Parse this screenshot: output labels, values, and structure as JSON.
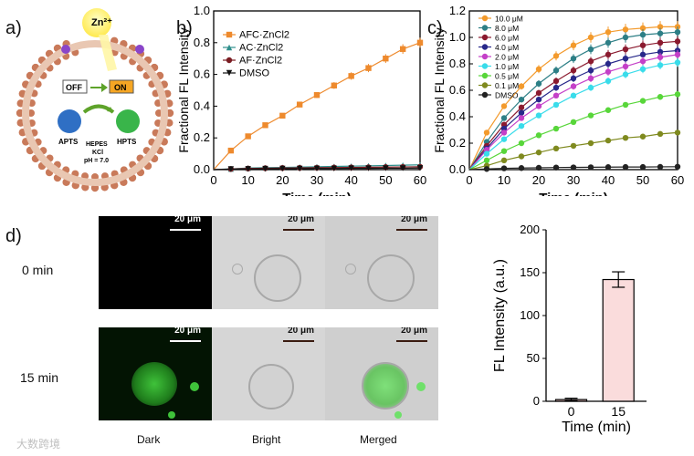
{
  "panels": {
    "a": "a)",
    "b": "b)",
    "c": "c)",
    "d": "d)"
  },
  "schematic": {
    "ion": "Zn²⁺",
    "off": "OFF",
    "on": "ON",
    "left_dye": "APTS",
    "right_dye": "HPTS",
    "buffer_lines": [
      "HEPES",
      "KCl",
      "pH = 7.0"
    ]
  },
  "colors": {
    "orange": "#ee8a2d",
    "teal": "#2f8f8c",
    "darkred": "#7a1c22",
    "black": "#111111",
    "pink": "#fadcdc",
    "green": "#3fc23a"
  },
  "chart_data": [
    {
      "id": "b",
      "type": "line",
      "title": "",
      "xlabel": "Time (min)",
      "ylabel": "Fractional FL Intensity",
      "xlim": [
        0,
        60
      ],
      "ylim": [
        0,
        1.0
      ],
      "xticks": [
        0,
        10,
        20,
        30,
        40,
        50,
        60
      ],
      "yticks": [
        0.0,
        0.2,
        0.4,
        0.6,
        0.8,
        1.0
      ],
      "legend_position": "top-left",
      "series": [
        {
          "name": "AFC·ZnCl2",
          "color": "#ee8a2d",
          "marker": "square",
          "x": [
            0,
            5,
            10,
            15,
            20,
            25,
            30,
            35,
            40,
            45,
            50,
            55,
            60
          ],
          "y": [
            0.0,
            0.12,
            0.21,
            0.28,
            0.34,
            0.41,
            0.47,
            0.53,
            0.59,
            0.64,
            0.7,
            0.76,
            0.8
          ]
        },
        {
          "name": "AC·ZnCl2",
          "color": "#2f8f8c",
          "marker": "triangle",
          "x": [
            0,
            5,
            10,
            15,
            20,
            25,
            30,
            35,
            40,
            45,
            50,
            55,
            60
          ],
          "y": [
            0.0,
            0.005,
            0.01,
            0.012,
            0.014,
            0.016,
            0.018,
            0.02,
            0.022,
            0.024,
            0.026,
            0.028,
            0.03
          ]
        },
        {
          "name": "AF·ZnCl2",
          "color": "#7a1c22",
          "marker": "circle",
          "x": [
            0,
            5,
            10,
            15,
            20,
            25,
            30,
            35,
            40,
            45,
            50,
            55,
            60
          ],
          "y": [
            0.0,
            0.004,
            0.007,
            0.009,
            0.01,
            0.011,
            0.012,
            0.013,
            0.014,
            0.015,
            0.016,
            0.017,
            0.018
          ]
        },
        {
          "name": "DMSO",
          "color": "#111111",
          "marker": "triangle-down",
          "x": [
            0,
            5,
            10,
            15,
            20,
            25,
            30,
            35,
            40,
            45,
            50,
            55,
            60
          ],
          "y": [
            0.0,
            0.003,
            0.004,
            0.005,
            0.006,
            0.006,
            0.007,
            0.007,
            0.008,
            0.008,
            0.009,
            0.009,
            0.01
          ]
        }
      ]
    },
    {
      "id": "c",
      "type": "line",
      "title": "",
      "xlabel": "Time (min)",
      "ylabel": "Fractional FL Intensity",
      "xlim": [
        0,
        60
      ],
      "ylim": [
        0,
        1.2
      ],
      "xticks": [
        0,
        10,
        20,
        30,
        40,
        50,
        60
      ],
      "yticks": [
        0.0,
        0.2,
        0.4,
        0.6,
        0.8,
        1.0,
        1.2
      ],
      "legend_position": "top-left",
      "x": [
        0,
        5,
        10,
        15,
        20,
        25,
        30,
        35,
        40,
        45,
        50,
        55,
        60
      ],
      "series": [
        {
          "name": "10.0 μM",
          "color": "#f39a2c",
          "y": [
            0.0,
            0.28,
            0.48,
            0.63,
            0.76,
            0.86,
            0.94,
            1.0,
            1.04,
            1.06,
            1.07,
            1.08,
            1.08
          ]
        },
        {
          "name": "8.0 μM",
          "color": "#2d7f86",
          "y": [
            0.0,
            0.21,
            0.39,
            0.53,
            0.65,
            0.75,
            0.84,
            0.91,
            0.96,
            1.0,
            1.02,
            1.03,
            1.04
          ]
        },
        {
          "name": "6.0 μM",
          "color": "#8b1a2f",
          "y": [
            0.0,
            0.18,
            0.34,
            0.47,
            0.58,
            0.67,
            0.75,
            0.82,
            0.87,
            0.91,
            0.94,
            0.96,
            0.97
          ]
        },
        {
          "name": "4.0 μM",
          "color": "#27288a",
          "y": [
            0.0,
            0.16,
            0.31,
            0.43,
            0.53,
            0.62,
            0.69,
            0.75,
            0.8,
            0.84,
            0.87,
            0.89,
            0.9
          ]
        },
        {
          "name": "2.0 μM",
          "color": "#c440c8",
          "y": [
            0.0,
            0.15,
            0.28,
            0.39,
            0.48,
            0.56,
            0.63,
            0.69,
            0.74,
            0.78,
            0.82,
            0.85,
            0.87
          ]
        },
        {
          "name": "1.0 μM",
          "color": "#39dcea",
          "y": [
            0.0,
            0.12,
            0.23,
            0.33,
            0.41,
            0.49,
            0.56,
            0.62,
            0.67,
            0.72,
            0.76,
            0.79,
            0.81
          ]
        },
        {
          "name": "0.5 μM",
          "color": "#58d63a",
          "y": [
            0.0,
            0.07,
            0.14,
            0.2,
            0.26,
            0.31,
            0.36,
            0.41,
            0.45,
            0.49,
            0.52,
            0.55,
            0.57
          ]
        },
        {
          "name": "0.1 μM",
          "color": "#7f8a1f",
          "y": [
            0.0,
            0.03,
            0.07,
            0.1,
            0.13,
            0.16,
            0.18,
            0.2,
            0.22,
            0.24,
            0.25,
            0.27,
            0.28
          ]
        },
        {
          "name": "DMSO",
          "color": "#222222",
          "y": [
            0.0,
            0.005,
            0.01,
            0.012,
            0.014,
            0.016,
            0.017,
            0.018,
            0.019,
            0.02,
            0.02,
            0.021,
            0.022
          ]
        }
      ]
    },
    {
      "id": "d_bar",
      "type": "bar",
      "title": "",
      "xlabel": "Time (min)",
      "ylabel": "FL Intensity (a.u.)",
      "categories": [
        "0",
        "15"
      ],
      "values": [
        2,
        142
      ],
      "errors": [
        1.5,
        9
      ],
      "ylim": [
        0,
        200
      ],
      "yticks": [
        0,
        50,
        100,
        150,
        200
      ],
      "bar_colors": [
        "#f4c9c9",
        "#fadcdc"
      ]
    }
  ],
  "micro": {
    "rows": [
      "0 min",
      "15 min"
    ],
    "columns": [
      "Dark",
      "Bright",
      "Merged"
    ],
    "scale": "20 μm"
  },
  "watermark": "大数跨境"
}
